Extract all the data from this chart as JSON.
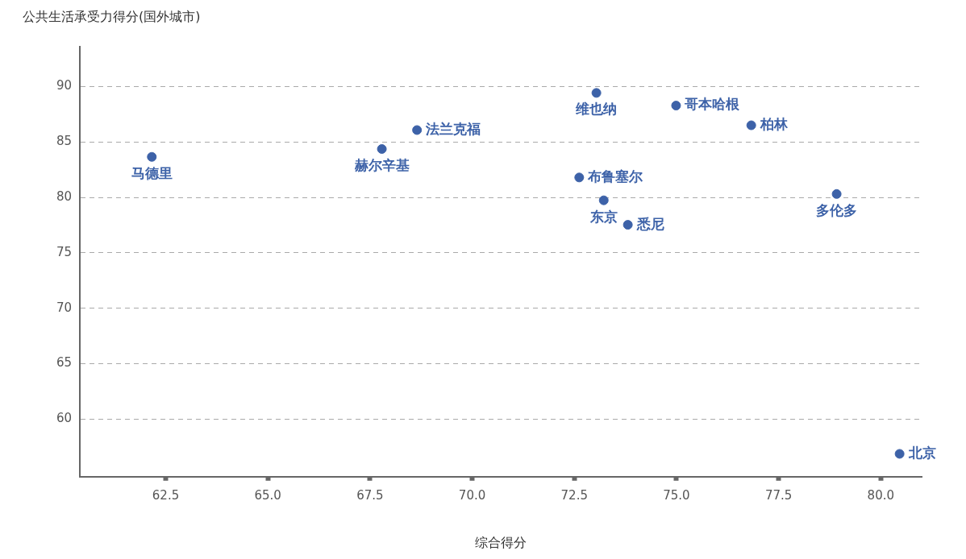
{
  "chart_data": {
    "type": "scatter",
    "ylabel": "公共生活承受力得分(国外城市)",
    "xlabel": "综合得分",
    "xlim": [
      60.4,
      81
    ],
    "ylim": [
      54.8,
      93.6
    ],
    "xticks": [
      62.5,
      {
        "value": 65,
        "label": "65.0"
      },
      67.5,
      {
        "value": 70,
        "label": "70.0"
      },
      72.5,
      {
        "value": 75,
        "label": "75.0"
      },
      77.5,
      {
        "value": 80,
        "label": "80.0"
      }
    ],
    "yticks": [
      60,
      65,
      70,
      75,
      80,
      85,
      90
    ],
    "grid": "y",
    "legend": false,
    "marker": "circle",
    "series": [
      {
        "color": "#3d62a8",
        "x": [
          62.16,
          67.79,
          68.65,
          73.04,
          74.99,
          76.83,
          72.62,
          73.22,
          73.81,
          78.92,
          80.46
        ],
        "values": [
          83.66,
          84.37,
          86.08,
          89.43,
          88.29,
          86.51,
          81.8,
          79.74,
          77.53,
          80.31,
          56.86
        ]
      }
    ],
    "annotations": [
      {
        "text": "马德里",
        "x": 62.16,
        "y": 83.66
      },
      {
        "text": "赫尔辛基",
        "x": 67.79,
        "y": 84.37
      },
      {
        "text": "法兰克福",
        "x": 68.65,
        "y": 86.08
      },
      {
        "text": "维也纳",
        "x": 73.04,
        "y": 89.43
      },
      {
        "text": "哥本哈根",
        "x": 74.99,
        "y": 88.29
      },
      {
        "text": "柏林",
        "x": 76.83,
        "y": 86.51
      },
      {
        "text": "布鲁塞尔",
        "x": 72.62,
        "y": 81.8
      },
      {
        "text": "东京",
        "x": 73.22,
        "y": 79.74
      },
      {
        "text": "悉尼",
        "x": 73.81,
        "y": 77.53
      },
      {
        "text": "多伦多",
        "x": 78.92,
        "y": 80.31
      },
      {
        "text": "北京",
        "x": 80.46,
        "y": 56.86
      }
    ]
  }
}
